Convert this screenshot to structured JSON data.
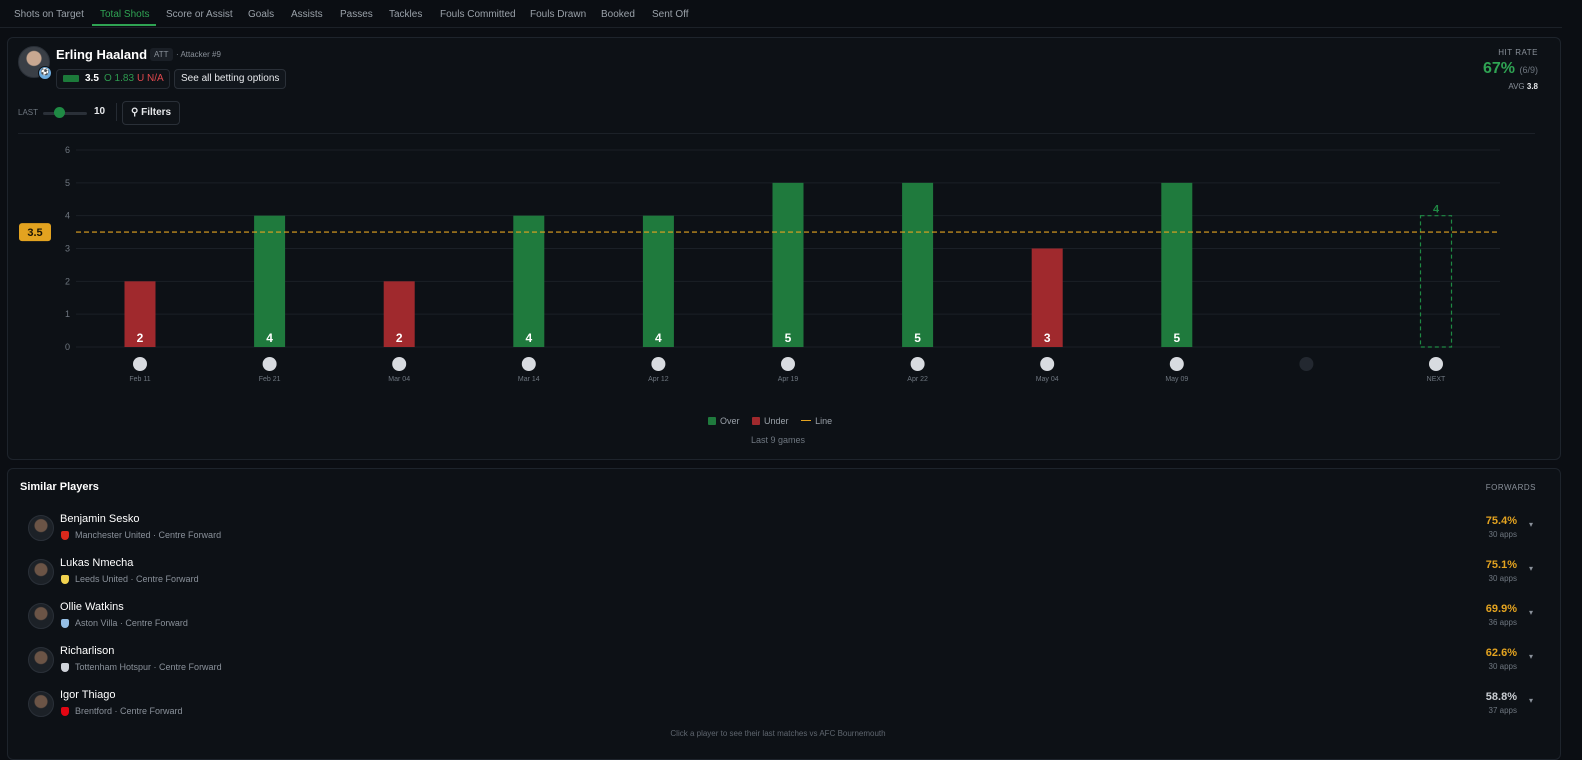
{
  "tabs": [
    {
      "label": "Shots on Target",
      "active": false
    },
    {
      "label": "Total Shots",
      "active": true
    },
    {
      "label": "Score or Assist",
      "active": false
    },
    {
      "label": "Goals",
      "active": false
    },
    {
      "label": "Assists",
      "active": false
    },
    {
      "label": "Passes",
      "active": false
    },
    {
      "label": "Tackles",
      "active": false
    },
    {
      "label": "Fouls Committed",
      "active": false
    },
    {
      "label": "Fouls Drawn",
      "active": false
    },
    {
      "label": "Booked",
      "active": false
    },
    {
      "label": "Sent Off",
      "active": false
    }
  ],
  "player": {
    "name": "Erling Haaland",
    "position_chip": "ATT",
    "position_sub": "· Attacker #9",
    "odds": {
      "line": "3.5",
      "over": "O 1.83",
      "under": "U N/A"
    },
    "betting_button": "See all betting options",
    "hit_rate": {
      "label": "HIT RATE",
      "value": "67%",
      "fraction": "(6/9)",
      "avg_label": "AVG",
      "avg_value": "3.8"
    }
  },
  "controls": {
    "last_label": "LAST",
    "last_value": "10",
    "slider_fraction": 0.5,
    "filters_label": "Filters"
  },
  "chart_data": {
    "type": "bar",
    "categories": [
      "Feb 11",
      "Feb 21",
      "Mar 04",
      "Mar 14",
      "Apr 12",
      "Apr 19",
      "Apr 22",
      "May 04",
      "May 09",
      "",
      "NEXT"
    ],
    "opponent_icons": [
      "fulham-crest-icon",
      "newcastle-crest-icon",
      "nottingham-forest-crest-icon",
      "west-ham-crest-icon",
      "chelsea-crest-icon",
      "arsenal-crest-icon",
      "burnley-crest-icon",
      "everton-crest-icon",
      "brentford-crest-icon",
      "crystal-palace-crest-icon",
      "bournemouth-crest-icon"
    ],
    "values": [
      2,
      4,
      2,
      4,
      4,
      5,
      5,
      3,
      5,
      null,
      4
    ],
    "result": [
      "under",
      "over",
      "under",
      "over",
      "over",
      "over",
      "over",
      "under",
      "over",
      "none",
      "projection"
    ],
    "line": 3.5,
    "line_label": "3.5",
    "ylim": [
      0,
      6
    ],
    "yticks": [
      0,
      1,
      2,
      3,
      4,
      5,
      6
    ],
    "colors": {
      "over": "#1f7a3d",
      "under": "#a0292d",
      "line": "#e3a320",
      "projection": "#1f8a44"
    },
    "legend": [
      "Over",
      "Under",
      "Line"
    ],
    "legend_position": "bottom",
    "grid": true,
    "caption": "Last 9 games"
  },
  "similar": {
    "title": "Similar Players",
    "tag": "FORWARDS",
    "players": [
      {
        "name": "Benjamin Sesko",
        "club": "Manchester United",
        "role": "Centre Forward",
        "pct": "75.4%",
        "apps": "30 apps",
        "pct_color": "#e3a320",
        "club_color": "#da291c"
      },
      {
        "name": "Lukas Nmecha",
        "club": "Leeds United",
        "role": "Centre Forward",
        "pct": "75.1%",
        "apps": "30 apps",
        "pct_color": "#e3a320",
        "club_color": "#f2d34f"
      },
      {
        "name": "Ollie Watkins",
        "club": "Aston Villa",
        "role": "Centre Forward",
        "pct": "69.9%",
        "apps": "36 apps",
        "pct_color": "#e3a320",
        "club_color": "#95bfe5"
      },
      {
        "name": "Richarlison",
        "club": "Tottenham Hotspur",
        "role": "Centre Forward",
        "pct": "62.6%",
        "apps": "30 apps",
        "pct_color": "#e3a320",
        "club_color": "#cfd3da"
      },
      {
        "name": "Igor Thiago",
        "club": "Brentford",
        "role": "Centre Forward",
        "pct": "58.8%",
        "apps": "37 apps",
        "pct_color": "#c9cdd2",
        "club_color": "#e30613"
      }
    ],
    "footer_hint": "Click a player to see their last matches vs AFC Bournemouth"
  }
}
